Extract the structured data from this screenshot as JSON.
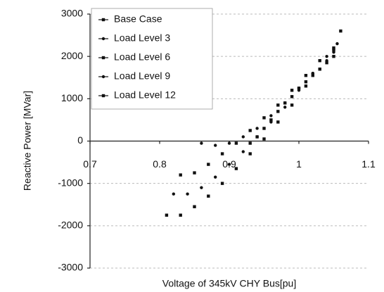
{
  "chart_data": {
    "type": "scatter",
    "x_label": "Voltage of 345kV CHY Bus[pu]",
    "y_label": "Reactive Power [MVar]",
    "xlim": [
      0.7,
      1.1
    ],
    "xticks": [
      0.7,
      0.8,
      0.9,
      1,
      1.1
    ],
    "ylim": [
      -3000,
      3000
    ],
    "yticks": [
      -3000,
      -2000,
      -1000,
      0,
      1000,
      2000,
      3000
    ],
    "grid": true,
    "legend": "upper left",
    "series": [
      {
        "name": "Base Case",
        "color": "#111111",
        "x": [
          0.93,
          0.94,
          0.95,
          0.96,
          0.97,
          0.98,
          0.99,
          1.0,
          1.01,
          1.02,
          1.03,
          1.04,
          1.05
        ],
        "values": [
          -50,
          100,
          300,
          500,
          700,
          900,
          1050,
          1250,
          1400,
          1550,
          1700,
          1850,
          2000
        ]
      },
      {
        "name": "Load Level 3",
        "color": "#111111",
        "x": [
          0.86,
          0.88,
          0.9,
          0.92,
          0.94,
          0.96,
          0.98,
          1.0,
          1.02,
          1.04,
          1.05
        ],
        "values": [
          -50,
          -100,
          -50,
          100,
          300,
          600,
          900,
          1250,
          1600,
          1900,
          2100
        ]
      },
      {
        "name": "Load Level 6",
        "color": "#111111",
        "x": [
          0.83,
          0.85,
          0.87,
          0.89,
          0.91,
          0.93,
          0.95,
          0.97,
          0.99,
          1.01,
          1.03,
          1.05
        ],
        "values": [
          -800,
          -750,
          -550,
          -300,
          -50,
          250,
          550,
          850,
          1200,
          1550,
          1900,
          2200
        ]
      },
      {
        "name": "Load Level 9",
        "color": "#111111",
        "x": [
          0.82,
          0.84,
          0.86,
          0.88,
          0.9,
          0.92,
          0.94,
          0.96,
          0.98,
          1.0,
          1.02,
          1.04,
          1.055
        ],
        "values": [
          -1250,
          -1250,
          -1100,
          -850,
          -550,
          -250,
          100,
          450,
          800,
          1200,
          1600,
          2000,
          2300
        ]
      },
      {
        "name": "Load Level 12",
        "color": "#111111",
        "x": [
          0.81,
          0.83,
          0.85,
          0.87,
          0.89,
          0.91,
          0.93,
          0.95,
          0.97,
          0.99,
          1.01,
          1.03,
          1.05,
          1.06
        ],
        "values": [
          -1750,
          -1750,
          -1550,
          -1300,
          -1000,
          -650,
          -300,
          50,
          450,
          850,
          1300,
          1700,
          2150,
          2600
        ]
      }
    ]
  }
}
